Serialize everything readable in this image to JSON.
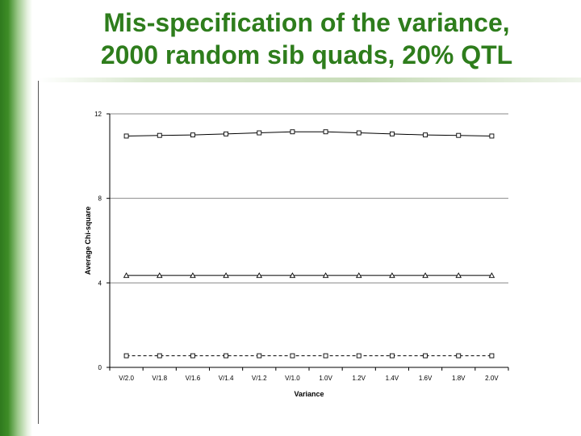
{
  "title": {
    "line1": "Mis-specification of the variance,",
    "line2": "2000 random sib quads, 20% QTL"
  },
  "colors": {
    "title": "#2e7d1c",
    "accent_bar": "#3d8c26"
  },
  "chart_data": {
    "type": "line",
    "xlabel": "Variance",
    "ylabel": "Average Chi-square",
    "ylim": [
      0,
      12
    ],
    "yticks": [
      0,
      4,
      8,
      12
    ],
    "categories": [
      "V/2.0",
      "V/1.8",
      "V/1.6",
      "V/1.4",
      "V/1.2",
      "V/1.0",
      "1.0V",
      "1.2V",
      "1.4V",
      "1.6V",
      "1.8V",
      "2.0V"
    ],
    "grid": "horizontal-only",
    "legend": "none",
    "series": [
      {
        "marker": "square",
        "line": "solid",
        "values": [
          10.95,
          10.98,
          11.0,
          11.05,
          11.1,
          11.15,
          11.15,
          11.1,
          11.05,
          11.0,
          10.98,
          10.95
        ]
      },
      {
        "marker": "triangle",
        "line": "solid",
        "values": [
          4.35,
          4.35,
          4.35,
          4.35,
          4.35,
          4.35,
          4.35,
          4.35,
          4.35,
          4.35,
          4.35,
          4.35
        ]
      },
      {
        "marker": "square",
        "line": "dashed",
        "values": [
          0.55,
          0.55,
          0.55,
          0.55,
          0.55,
          0.55,
          0.55,
          0.55,
          0.55,
          0.55,
          0.55,
          0.55
        ]
      }
    ]
  }
}
